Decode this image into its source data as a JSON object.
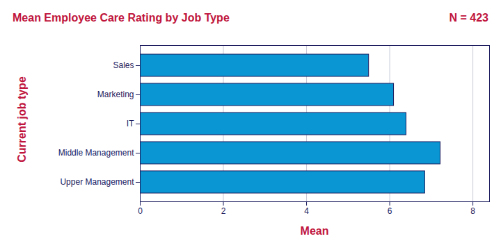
{
  "chart_data": {
    "type": "bar",
    "title": "Mean Employee Care Rating by Job Type",
    "subtitle": "N = 423",
    "x_label": "Mean",
    "y_label": "Current job type",
    "categories": [
      "Sales",
      "Marketing",
      "IT",
      "Middle Management",
      "Upper Management"
    ],
    "values": [
      5.5,
      6.1,
      6.4,
      7.22,
      6.85
    ],
    "color": "#0a96d2",
    "orientation": "horizontal",
    "xlim": [
      0,
      8.4
    ],
    "xticks": [
      0,
      2,
      4,
      6,
      8
    ],
    "grid": true
  }
}
